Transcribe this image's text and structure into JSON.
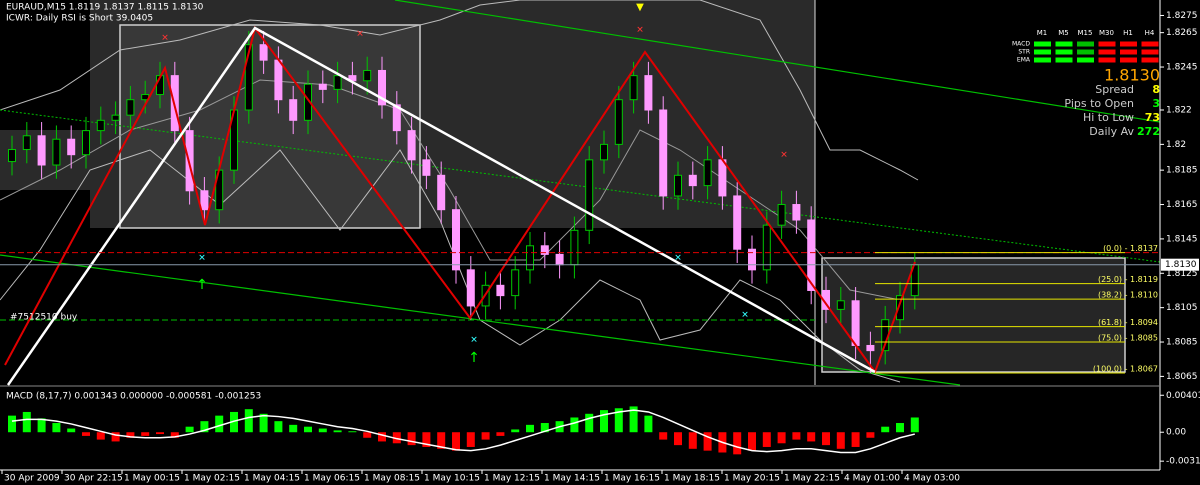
{
  "chart_data": {
    "type": "candlestick",
    "title": "EURAUD,M15  1.8119 1.8137 1.8115 1.8130",
    "subtitle": "ICWR: Daily RSI is Short 39.0405",
    "annotations": [
      "#7512510 buy"
    ],
    "time_labels": [
      "30 Apr 2009",
      "30 Apr 22:15",
      "1 May 00:15",
      "1 May 02:15",
      "1 May 04:15",
      "1 May 06:15",
      "1 May 08:15",
      "1 May 10:15",
      "1 May 12:15",
      "1 May 14:15",
      "1 May 16:15",
      "1 May 18:15",
      "1 May 20:15",
      "1 May 22:15",
      "4 May 01:00",
      "4 May 03:00"
    ],
    "open": [
      1.819,
      1.8197,
      1.8205,
      1.8188,
      1.8203,
      1.8194,
      1.8208,
      1.8214,
      1.8217,
      1.8226,
      1.8229,
      1.824,
      1.8208,
      1.8173,
      1.8162,
      1.8185,
      1.822,
      1.8258,
      1.8249,
      1.8226,
      1.8214,
      1.8235,
      1.8232,
      1.824,
      1.8237,
      1.8243,
      1.8223,
      1.8208,
      1.8191,
      1.8182,
      1.8162,
      1.8127,
      1.8106,
      1.8118,
      1.8112,
      1.8127,
      1.8141,
      1.8136,
      1.813,
      1.815,
      1.8191,
      1.82,
      1.8226,
      1.824,
      1.822,
      1.817,
      1.8182,
      1.8176,
      1.8191,
      1.817,
      1.8139,
      1.8127,
      1.8153,
      1.8165,
      1.8156,
      1.8115,
      1.8104,
      1.8109,
      1.8083,
      1.808,
      1.8098,
      1.8112
    ],
    "high": [
      1.8205,
      1.8213,
      1.8213,
      1.8211,
      1.8211,
      1.8216,
      1.8222,
      1.8225,
      1.8234,
      1.8237,
      1.8248,
      1.8248,
      1.8216,
      1.8181,
      1.8193,
      1.8228,
      1.8266,
      1.8266,
      1.8257,
      1.8234,
      1.8243,
      1.8243,
      1.8248,
      1.8248,
      1.8251,
      1.8251,
      1.8231,
      1.8216,
      1.8199,
      1.819,
      1.817,
      1.8135,
      1.8126,
      1.8126,
      1.8135,
      1.8149,
      1.8149,
      1.8144,
      1.8158,
      1.8199,
      1.8208,
      1.8234,
      1.8248,
      1.8248,
      1.8228,
      1.819,
      1.819,
      1.8199,
      1.8199,
      1.8178,
      1.8147,
      1.8161,
      1.8173,
      1.8173,
      1.8164,
      1.8123,
      1.8117,
      1.8117,
      1.8091,
      1.8106,
      1.812,
      1.8137
    ],
    "low": [
      1.8182,
      1.8189,
      1.818,
      1.818,
      1.8186,
      1.8186,
      1.82,
      1.8206,
      1.8209,
      1.8218,
      1.8221,
      1.82,
      1.8165,
      1.8154,
      1.8154,
      1.8177,
      1.8212,
      1.8241,
      1.8218,
      1.8206,
      1.8206,
      1.8224,
      1.8224,
      1.8229,
      1.8229,
      1.8215,
      1.82,
      1.8183,
      1.8174,
      1.8154,
      1.8119,
      1.8098,
      1.8098,
      1.8104,
      1.8104,
      1.8119,
      1.8128,
      1.8122,
      1.8122,
      1.8142,
      1.8183,
      1.8192,
      1.8218,
      1.8212,
      1.8162,
      1.8162,
      1.8168,
      1.8168,
      1.8162,
      1.8131,
      1.8119,
      1.8119,
      1.8145,
      1.8148,
      1.8107,
      1.8096,
      1.8096,
      1.8075,
      1.8067,
      1.8072,
      1.809,
      1.8104
    ],
    "close": [
      1.8197,
      1.8205,
      1.8188,
      1.8203,
      1.8194,
      1.8208,
      1.8214,
      1.8217,
      1.8226,
      1.8229,
      1.824,
      1.8208,
      1.8173,
      1.8162,
      1.8185,
      1.822,
      1.8258,
      1.8249,
      1.8226,
      1.8214,
      1.8235,
      1.8232,
      1.824,
      1.8237,
      1.8243,
      1.8223,
      1.8208,
      1.8191,
      1.8182,
      1.8162,
      1.8127,
      1.8106,
      1.8118,
      1.8112,
      1.8127,
      1.8141,
      1.8136,
      1.813,
      1.815,
      1.8191,
      1.82,
      1.8226,
      1.824,
      1.822,
      1.817,
      1.8182,
      1.8176,
      1.8191,
      1.817,
      1.8139,
      1.8127,
      1.8153,
      1.8165,
      1.8156,
      1.8115,
      1.8104,
      1.8109,
      1.8083,
      1.808,
      1.8098,
      1.8112,
      1.813
    ],
    "up_color": "#00c800",
    "down_color": "#ff99ff",
    "ylim": [
      1.806,
      1.8284
    ],
    "yticks": [
      1.8275,
      1.8265,
      1.8245,
      1.822,
      1.82,
      1.8185,
      1.8165,
      1.8145,
      1.8125,
      1.8105,
      1.8085,
      1.8065
    ],
    "current_price": {
      "value": 1.813,
      "label": "1.8130"
    },
    "fib_levels": [
      {
        "label": "(0.0) - 1.8137",
        "value": 1.8137
      },
      {
        "label": "(25.0) - 1.8119",
        "value": 1.8119
      },
      {
        "label": "(38.2) - 1.8110",
        "value": 1.811
      },
      {
        "label": "(61.8) - 1.8094",
        "value": 1.8094
      },
      {
        "label": "(75.0) - 1.8085",
        "value": 1.8085
      },
      {
        "label": "(100.0) - 1.8067",
        "value": 1.8067
      }
    ],
    "indicator": {
      "type": "histogram",
      "title": "MACD (8,17,7) 0.001343 0.000000 -0.000581 -0.001253",
      "values": [
        0.0018,
        0.0022,
        0.0015,
        0.001,
        0.0004,
        -0.0004,
        -0.0008,
        -0.001,
        -0.0006,
        -0.0004,
        -0.0002,
        -0.0006,
        0.0006,
        0.0012,
        0.0018,
        0.0022,
        0.0025,
        0.002,
        0.0012,
        0.0008,
        0.0006,
        0.0004,
        0.0002,
        0.0001,
        -0.0006,
        -0.001,
        -0.0012,
        -0.0014,
        -0.0016,
        -0.0018,
        -0.002,
        -0.0016,
        -0.0008,
        -0.0004,
        0.0003,
        0.0008,
        0.001,
        0.0012,
        0.0016,
        0.002,
        0.0024,
        0.0026,
        0.0028,
        0.0018,
        -0.0008,
        -0.0014,
        -0.0018,
        -0.002,
        -0.0022,
        -0.0024,
        -0.002,
        -0.0016,
        -0.0012,
        -0.0008,
        -0.001,
        -0.0014,
        -0.0018,
        -0.0016,
        -0.0006,
        0.0006,
        0.001,
        0.0016
      ],
      "signal": [
        0.0012,
        0.0014,
        0.0014,
        0.0012,
        0.0009,
        0.0005,
        0.0001,
        -0.0003,
        -0.0005,
        -0.0006,
        -0.0006,
        -0.0005,
        -0.0002,
        0.0002,
        0.0007,
        0.0012,
        0.0016,
        0.0018,
        0.0017,
        0.0015,
        0.0012,
        0.0009,
        0.0006,
        0.0004,
        0.0001,
        -0.0003,
        -0.0007,
        -0.001,
        -0.0013,
        -0.0016,
        -0.0019,
        -0.002,
        -0.0018,
        -0.0014,
        -0.0009,
        -0.0004,
        0.0001,
        0.0006,
        0.001,
        0.0015,
        0.0019,
        0.0022,
        0.0024,
        0.0022,
        0.0016,
        0.0009,
        0.0002,
        -0.0005,
        -0.0011,
        -0.0016,
        -0.002,
        -0.0021,
        -0.002,
        -0.0018,
        -0.0018,
        -0.002,
        -0.0022,
        -0.0022,
        -0.0018,
        -0.0012,
        -0.0006,
        -0.0002
      ],
      "positive_color": "#00ff00",
      "negative_color": "#ff0000",
      "signal_color": "#ffffff",
      "ylim": [
        -0.0041,
        0.0048
      ],
      "yticks": [
        0.004012,
        {
          "value": 0,
          "label": "0.00"
        },
        -0.00314
      ]
    }
  },
  "panel": {
    "columns": [
      "M1",
      "M5",
      "M15",
      "M30",
      "H1",
      "H4"
    ],
    "rows": [
      {
        "label": "MACD",
        "signals": [
          "#00ff00",
          "#00ff00",
          "#00c000",
          "#ff0000",
          "#ff0000",
          "#ff0000"
        ]
      },
      {
        "label": "STR",
        "signals": [
          "#00ff00",
          "#00ff00",
          "#00c000",
          "#ff0000",
          "#ff0000",
          "#ff0000"
        ]
      },
      {
        "label": "EMA",
        "signals": [
          "#00ff00",
          "#00ff00",
          "#00ff00",
          "#ff0000",
          "#ff0000",
          "#ff0000"
        ]
      }
    ],
    "price": "1.8130",
    "price_color": "#ffa500",
    "stats": [
      {
        "label": "Spread",
        "value": "8",
        "color": "#ffff00"
      },
      {
        "label": "Pips to Open",
        "value": "3",
        "color": "#00ff00"
      },
      {
        "label": "Hi to Low",
        "value": "73",
        "color": "#ffff00"
      },
      {
        "label": "Daily Av",
        "value": "272",
        "color": "#00ff00"
      }
    ]
  }
}
